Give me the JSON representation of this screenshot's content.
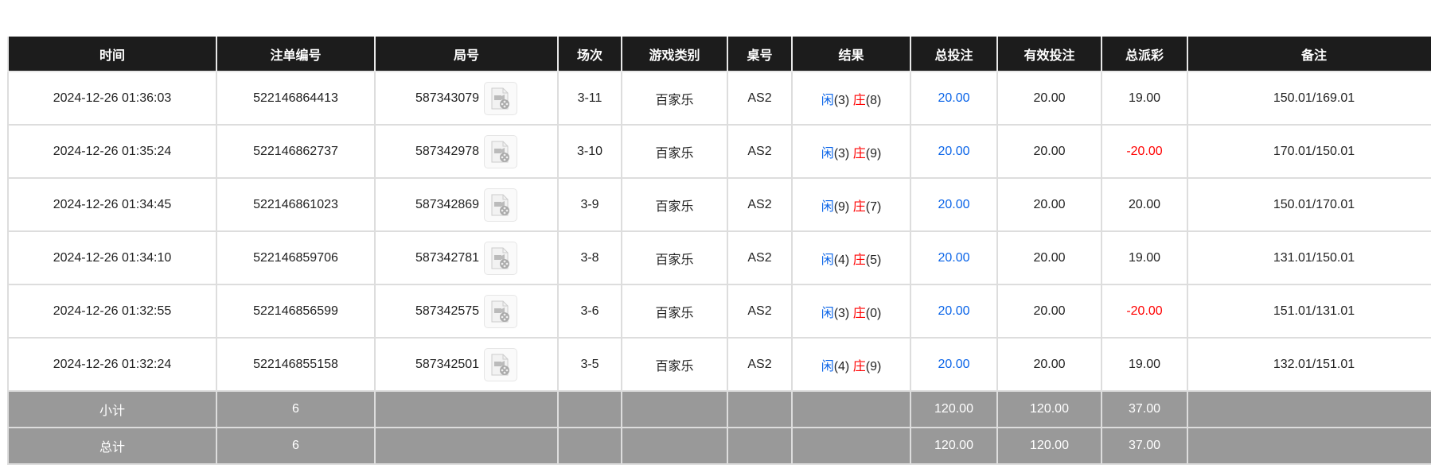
{
  "columns": [
    "时间",
    "注单编号",
    "局号",
    "场次",
    "游戏类别",
    "桌号",
    "结果",
    "总投注",
    "有效投注",
    "总派彩",
    "备注"
  ],
  "rows": [
    {
      "time": "2024-12-26 01:36:03",
      "bet_id": "522146864413",
      "round": "587343079",
      "session": "3-11",
      "game": "百家乐",
      "table": "AS2",
      "player_label": "闲",
      "player_score": "(3)",
      "banker_label": "庄",
      "banker_score": "(8)",
      "total_bet": "20.00",
      "valid_bet": "20.00",
      "payout": "19.00",
      "payout_negative": false,
      "note": "150.01/169.01"
    },
    {
      "time": "2024-12-26 01:35:24",
      "bet_id": "522146862737",
      "round": "587342978",
      "session": "3-10",
      "game": "百家乐",
      "table": "AS2",
      "player_label": "闲",
      "player_score": "(3)",
      "banker_label": "庄",
      "banker_score": "(9)",
      "total_bet": "20.00",
      "valid_bet": "20.00",
      "payout": "-20.00",
      "payout_negative": true,
      "note": "170.01/150.01"
    },
    {
      "time": "2024-12-26 01:34:45",
      "bet_id": "522146861023",
      "round": "587342869",
      "session": "3-9",
      "game": "百家乐",
      "table": "AS2",
      "player_label": "闲",
      "player_score": "(9)",
      "banker_label": "庄",
      "banker_score": "(7)",
      "total_bet": "20.00",
      "valid_bet": "20.00",
      "payout": "20.00",
      "payout_negative": false,
      "note": "150.01/170.01"
    },
    {
      "time": "2024-12-26 01:34:10",
      "bet_id": "522146859706",
      "round": "587342781",
      "session": "3-8",
      "game": "百家乐",
      "table": "AS2",
      "player_label": "闲",
      "player_score": "(4)",
      "banker_label": "庄",
      "banker_score": "(5)",
      "total_bet": "20.00",
      "valid_bet": "20.00",
      "payout": "19.00",
      "payout_negative": false,
      "note": "131.01/150.01"
    },
    {
      "time": "2024-12-26 01:32:55",
      "bet_id": "522146856599",
      "round": "587342575",
      "session": "3-6",
      "game": "百家乐",
      "table": "AS2",
      "player_label": "闲",
      "player_score": "(3)",
      "banker_label": "庄",
      "banker_score": "(0)",
      "total_bet": "20.00",
      "valid_bet": "20.00",
      "payout": "-20.00",
      "payout_negative": true,
      "note": "151.01/131.01"
    },
    {
      "time": "2024-12-26 01:32:24",
      "bet_id": "522146855158",
      "round": "587342501",
      "session": "3-5",
      "game": "百家乐",
      "table": "AS2",
      "player_label": "闲",
      "player_score": "(4)",
      "banker_label": "庄",
      "banker_score": "(9)",
      "total_bet": "20.00",
      "valid_bet": "20.00",
      "payout": "19.00",
      "payout_negative": false,
      "note": "132.01/151.01"
    }
  ],
  "subtotal": {
    "label": "小计",
    "count": "6",
    "total_bet": "120.00",
    "valid_bet": "120.00",
    "payout": "37.00"
  },
  "total": {
    "label": "总计",
    "count": "6",
    "total_bet": "120.00",
    "valid_bet": "120.00",
    "payout": "37.00"
  },
  "colors": {
    "header_bg": "#1c1c1c",
    "player": "#0a64e8",
    "banker": "#ff0000",
    "negative": "#ff0000",
    "summary_bg": "#999999"
  },
  "icons": {
    "replay": "video-file-icon"
  }
}
